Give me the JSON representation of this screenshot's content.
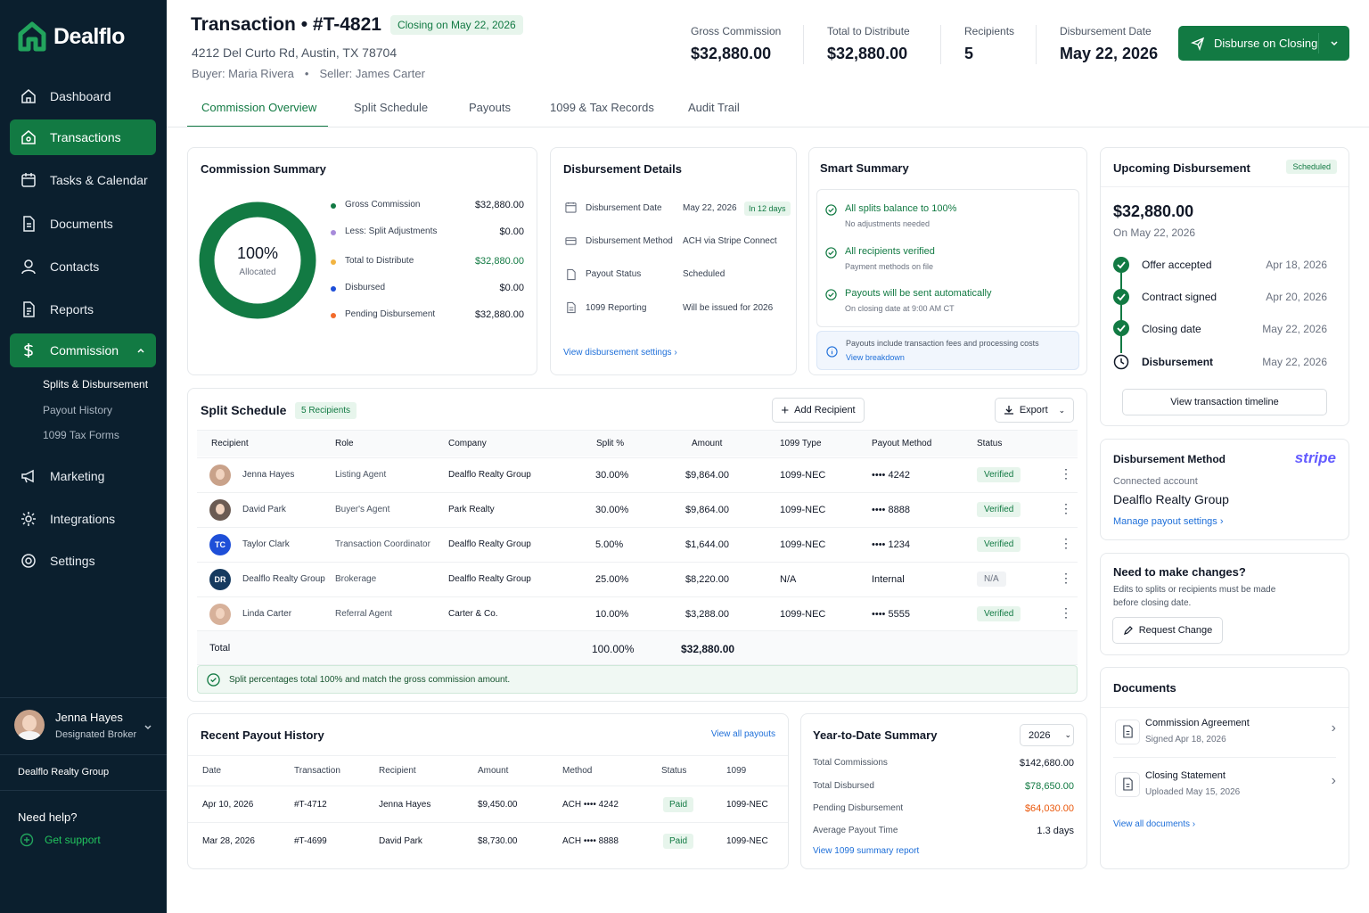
{
  "app": {
    "name": "Dealflo"
  },
  "nav": [
    {
      "label": "Dashboard"
    },
    {
      "label": "Transactions"
    },
    {
      "label": "Tasks & Calendar"
    },
    {
      "label": "Documents"
    },
    {
      "label": "Contacts"
    },
    {
      "label": "Reports"
    },
    {
      "label": "Commission"
    },
    {
      "label": "Marketing"
    },
    {
      "label": "Integrations"
    },
    {
      "label": "Settings"
    }
  ],
  "subnav": [
    {
      "label": "Splits & Disbursement"
    },
    {
      "label": "Payout History"
    },
    {
      "label": "1099 Tax Forms"
    }
  ],
  "user": {
    "name": "Jenna Hayes",
    "role": "Designated Broker",
    "org": "Dealflo Realty Group"
  },
  "help": {
    "title": "Need help?",
    "link": "Get support"
  },
  "header": {
    "title": "Transaction • #T-4821",
    "badge": "Closing on May 22, 2026",
    "address": "4212 Del Curto Rd, Austin, TX 78704",
    "buyer": "Buyer: Maria Rivera",
    "seller": "Seller: James Carter"
  },
  "kpis": [
    {
      "label": "Gross Commission",
      "value": "$32,880.00"
    },
    {
      "label": "Total to Distribute",
      "value": "$32,880.00"
    },
    {
      "label": "Recipients",
      "value": "5"
    },
    {
      "label": "Disbursement Date",
      "value": "May 22, 2026"
    }
  ],
  "disburse_button": "Disburse on Closing",
  "tabs": [
    {
      "label": "Commission Overview"
    },
    {
      "label": "Split Schedule"
    },
    {
      "label": "Payouts"
    },
    {
      "label": "1099 & Tax Records"
    },
    {
      "label": "Audit Trail"
    }
  ],
  "summary": {
    "title": "Commission Summary",
    "pct": "100%",
    "pct_label": "Allocated",
    "allocated_fraction": 1.0,
    "items": [
      {
        "label": "Gross Commission",
        "value": "$32,880.00",
        "color": "#127a43"
      },
      {
        "label": "Less: Split Adjustments",
        "value": "$0.00",
        "color": "#a78bda"
      },
      {
        "label": "Total to Distribute",
        "value": "$32,880.00",
        "color": "#f2b441"
      },
      {
        "label": "Disbursed",
        "value": "$0.00",
        "color": "#1d4ed8"
      },
      {
        "label": "Pending Disbursement",
        "value": "$32,880.00",
        "color": "#f26b2b"
      }
    ]
  },
  "disb": {
    "title": "Disbursement Details",
    "rows": [
      {
        "label": "Disbursement Date",
        "value": "May 22, 2026",
        "tag": "In 12 days"
      },
      {
        "label": "Disbursement Method",
        "value": "ACH via Stripe Connect"
      },
      {
        "label": "Payout Status",
        "value": "Scheduled"
      },
      {
        "label": "1099 Reporting",
        "value": "Will be issued for 2026"
      }
    ],
    "link": "View disbursement settings"
  },
  "smart": {
    "title": "Smart Summary",
    "items": [
      {
        "t": "All splits balance to 100%",
        "s": "No adjustments needed"
      },
      {
        "t": "All recipients verified",
        "s": "Payment methods on file"
      },
      {
        "t": "Payouts will be sent automatically",
        "s": "On closing date at 9:00 AM CT"
      }
    ],
    "note": "Payouts include transaction fees and processing costs",
    "note_link": "View breakdown"
  },
  "upcoming": {
    "title": "Upcoming Disbursement",
    "badge": "Scheduled",
    "amount": "$32,880.00",
    "date": "On May 22, 2026",
    "steps": [
      {
        "label": "Offer accepted",
        "date": "Apr 18, 2026"
      },
      {
        "label": "Contract signed",
        "date": "Apr 20, 2026"
      },
      {
        "label": "Closing date",
        "date": "May 22, 2026"
      },
      {
        "label": "Disbursement",
        "date": "May 22, 2026"
      }
    ],
    "button": "View transaction timeline"
  },
  "split": {
    "title": "Split Schedule",
    "badge": "5 Recipients",
    "add": "Add Recipient",
    "export": "Export",
    "cols": [
      "Recipient",
      "Role",
      "Company",
      "Split %",
      "Amount",
      "1099 Type",
      "Payout Method",
      "Status"
    ],
    "rows": [
      {
        "name": "Jenna Hayes",
        "role": "Listing Agent",
        "company": "Dealflo Realty Group",
        "split": "30.00%",
        "amount": "$9,864.00",
        "type": "1099-NEC",
        "method": "•••• 4242",
        "status": "Verified"
      },
      {
        "name": "David Park",
        "role": "Buyer's Agent",
        "company": "Park Realty",
        "split": "30.00%",
        "amount": "$9,864.00",
        "type": "1099-NEC",
        "method": "•••• 8888",
        "status": "Verified"
      },
      {
        "name": "Taylor Clark",
        "initials": "TC",
        "role": "Transaction Coordinator",
        "company": "Dealflo Realty Group",
        "split": "5.00%",
        "amount": "$1,644.00",
        "type": "1099-NEC",
        "method": "•••• 1234",
        "status": "Verified"
      },
      {
        "name": "Dealflo Realty Group",
        "initials": "DR",
        "role": "Brokerage",
        "company": "Dealflo Realty Group",
        "split": "25.00%",
        "amount": "$8,220.00",
        "type": "N/A",
        "method": "Internal",
        "status": "N/A"
      },
      {
        "name": "Linda Carter",
        "role": "Referral Agent",
        "company": "Carter & Co.",
        "split": "10.00%",
        "amount": "$3,288.00",
        "type": "1099-NEC",
        "method": "•••• 5555",
        "status": "Verified"
      }
    ],
    "total_label": "Total",
    "total_split": "100.00%",
    "total_amount": "$32,880.00",
    "check": "Split percentages total 100% and match the gross commission amount."
  },
  "history": {
    "title": "Recent Payout History",
    "link": "View all payouts",
    "cols": [
      "Date",
      "Transaction",
      "Recipient",
      "Amount",
      "Method",
      "Status",
      "1099"
    ],
    "rows": [
      {
        "date": "Apr 10, 2026",
        "tx": "#T-4712",
        "rec": "Jenna Hayes",
        "amt": "$9,450.00",
        "method": "ACH •••• 4242",
        "status": "Paid",
        "type": "1099-NEC"
      },
      {
        "date": "Mar 28, 2026",
        "tx": "#T-4699",
        "rec": "David Park",
        "amt": "$8,730.00",
        "method": "ACH •••• 8888",
        "status": "Paid",
        "type": "1099-NEC"
      }
    ]
  },
  "ytd": {
    "title": "Year-to-Date Summary",
    "year": "2026",
    "rows": [
      {
        "label": "Total Commissions",
        "value": "$142,680.00"
      },
      {
        "label": "Total Disbursed",
        "value": "$78,650.00"
      },
      {
        "label": "Pending Disbursement",
        "value": "$64,030.00"
      },
      {
        "label": "Average Payout Time",
        "value": "1.3 days"
      }
    ],
    "link": "View 1099 summary report"
  },
  "method": {
    "title": "Disbursement Method",
    "brand": "stripe",
    "sub": "Connected account",
    "name": "Dealflo Realty Group",
    "link": "Manage payout settings"
  },
  "changes": {
    "title": "Need to make changes?",
    "text1": "Edits to splits or recipients must be made",
    "text2": "before closing date.",
    "button": "Request Change"
  },
  "docs": {
    "title": "Documents",
    "items": [
      {
        "name": "Commission Agreement",
        "sub": "Signed Apr 18, 2026"
      },
      {
        "name": "Closing Statement",
        "sub": "Uploaded May 15, 2026"
      }
    ],
    "link": "View all documents"
  }
}
